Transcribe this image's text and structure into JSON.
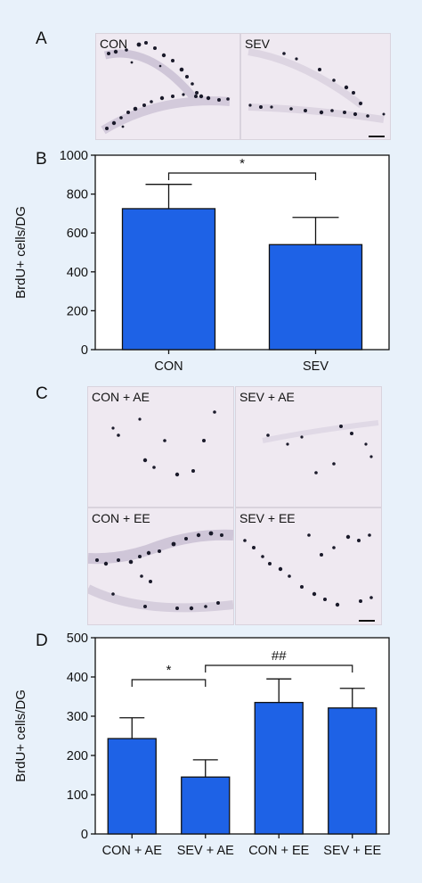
{
  "panels": {
    "A": {
      "letter": "A",
      "images": [
        {
          "label": "CON"
        },
        {
          "label": "SEV"
        }
      ]
    },
    "C": {
      "letter": "C",
      "images": [
        {
          "label": "CON + AE"
        },
        {
          "label": "SEV + AE"
        },
        {
          "label": "CON + EE"
        },
        {
          "label": "SEV + EE"
        }
      ]
    }
  },
  "chart_data": [
    {
      "panel": "B",
      "type": "bar",
      "ylabel": "BrdU+ cells/DG",
      "xlabel": "",
      "categories": [
        "CON",
        "SEV"
      ],
      "values": [
        725,
        540
      ],
      "errors": [
        125,
        140
      ],
      "ylim": [
        0,
        1000
      ],
      "yticks": [
        "0",
        "200",
        "400",
        "600",
        "800",
        "1000"
      ],
      "bar_color": "#1e62e6",
      "significance": [
        {
          "from": 0,
          "to": 1,
          "label": "*"
        }
      ]
    },
    {
      "panel": "D",
      "type": "bar",
      "ylabel": "BrdU+ cells/DG",
      "xlabel": "",
      "categories": [
        "CON + AE",
        "SEV + AE",
        "CON + EE",
        "SEV + EE"
      ],
      "values": [
        243,
        145,
        335,
        321
      ],
      "errors": [
        53,
        44,
        60,
        50
      ],
      "ylim": [
        0,
        500
      ],
      "yticks": [
        "0",
        "100",
        "200",
        "300",
        "400",
        "500"
      ],
      "bar_color": "#1e62e6",
      "significance": [
        {
          "from": 0,
          "to": 1,
          "label": "*"
        },
        {
          "from": 1,
          "to": 3,
          "label": "##"
        }
      ]
    }
  ]
}
